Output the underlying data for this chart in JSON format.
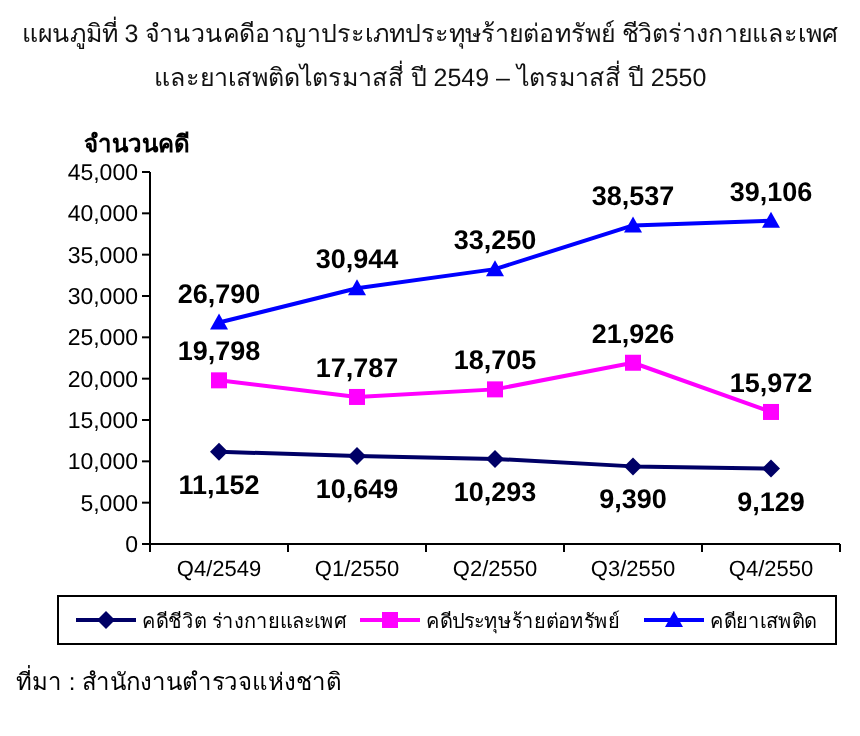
{
  "chart_data": {
    "type": "line",
    "title": "แผนภูมิที่ 3 จำนวนคดีอาญาประเภทประทุษร้ายต่อทรัพย์ ชีวิตร่างกายและเพศ และยาเสพติดไตรมาสสี่ ปี 2549 – ไตรมาสสี่ ปี 2550",
    "ylabel": "จำนวนคดี",
    "categories": [
      "Q4/2549",
      "Q1/2550",
      "Q2/2550",
      "Q3/2550",
      "Q4/2550"
    ],
    "series": [
      {
        "name": "คดีชีวิต ร่างกายและเพศ",
        "color": "#000066",
        "marker": "diamond",
        "values": [
          11152,
          10649,
          10293,
          9390,
          9129
        ],
        "value_labels": [
          "11,152",
          "10,649",
          "10,293",
          "9,390",
          "9,129"
        ]
      },
      {
        "name": "คดีประทุษร้ายต่อทรัพย์",
        "color": "#ff00ff",
        "marker": "square",
        "values": [
          19798,
          17787,
          18705,
          21926,
          15972
        ],
        "value_labels": [
          "19,798",
          "17,787",
          "18,705",
          "21,926",
          "15,972"
        ]
      },
      {
        "name": "คดียาเสพติด",
        "color": "#0000ff",
        "marker": "triangle",
        "values": [
          26790,
          30944,
          33250,
          38537,
          39106
        ],
        "value_labels": [
          "26,790",
          "30,944",
          "33,250",
          "38,537",
          "39,106"
        ]
      }
    ],
    "ylim": [
      0,
      45000
    ],
    "yticks": [
      0,
      {
        "value": 5000,
        "label": "5,000"
      },
      {
        "value": 10000,
        "label": "10,000"
      },
      {
        "value": 15000,
        "label": "15,000"
      },
      {
        "value": 20000,
        "label": "20,000"
      },
      {
        "value": 25000,
        "label": "25,000"
      },
      {
        "value": 30000,
        "label": "30,000"
      },
      {
        "value": 35000,
        "label": "35,000"
      },
      {
        "value": 40000,
        "label": "40,000"
      },
      {
        "value": 45000,
        "label": "45,000"
      }
    ],
    "legend": "bottom",
    "line_style": "solid",
    "annotations": [
      "ที่มา : สำนักงานตำรวจแห่งชาติ"
    ]
  }
}
